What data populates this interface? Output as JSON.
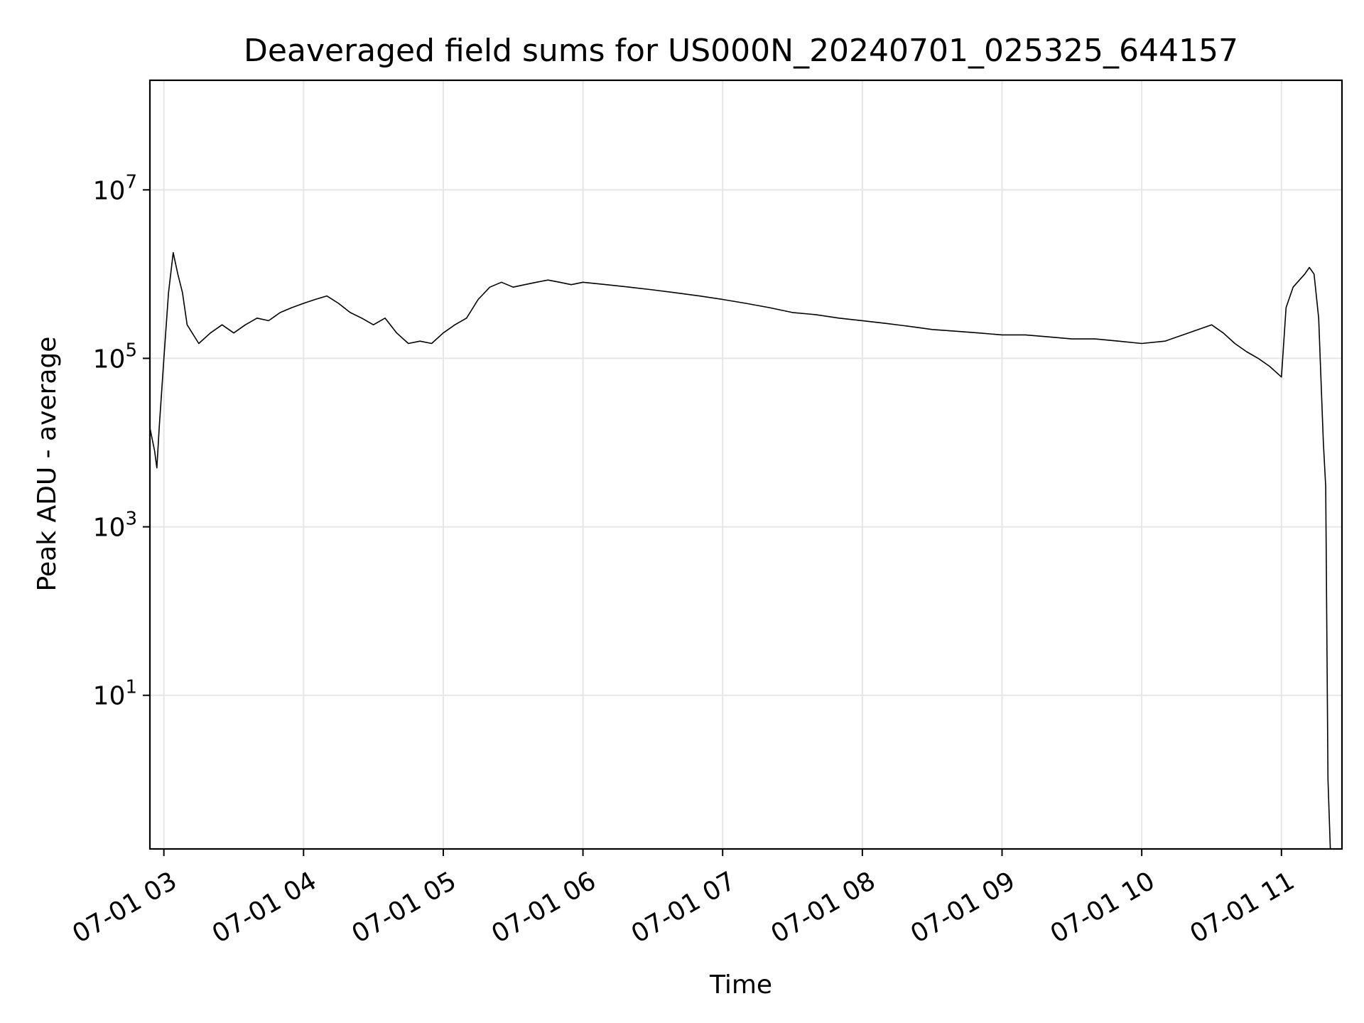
{
  "chart_data": {
    "type": "line",
    "title": "Deaveraged field sums for US000N_20240701_025325_644157",
    "xlabel": "Time",
    "ylabel": "Peak ADU - average",
    "y_scale": "log",
    "grid": true,
    "line_color": "#000000",
    "grid_color": "#e6e6e6",
    "xlim": [
      "2024-07-01 02:54",
      "2024-07-01 11:26"
    ],
    "ylim": [
      0.15,
      200000000
    ],
    "x_ticks": [
      {
        "value": "2024-07-01 03:00",
        "label": "07-01 03"
      },
      {
        "value": "2024-07-01 04:00",
        "label": "07-01 04"
      },
      {
        "value": "2024-07-01 05:00",
        "label": "07-01 05"
      },
      {
        "value": "2024-07-01 06:00",
        "label": "07-01 06"
      },
      {
        "value": "2024-07-01 07:00",
        "label": "07-01 07"
      },
      {
        "value": "2024-07-01 08:00",
        "label": "07-01 08"
      },
      {
        "value": "2024-07-01 09:00",
        "label": "07-01 09"
      },
      {
        "value": "2024-07-01 10:00",
        "label": "07-01 10"
      },
      {
        "value": "2024-07-01 11:00",
        "label": "07-01 11"
      }
    ],
    "y_ticks": [
      {
        "value": 10,
        "base": "10",
        "exp": "1"
      },
      {
        "value": 1000,
        "base": "10",
        "exp": "3"
      },
      {
        "value": 100000,
        "base": "10",
        "exp": "5"
      },
      {
        "value": 10000000,
        "base": "10",
        "exp": "7"
      }
    ],
    "series": [
      {
        "points": [
          [
            "2024-07-01 02:54",
            15000
          ],
          [
            "2024-07-01 02:56",
            8000
          ],
          [
            "2024-07-01 02:57",
            5000
          ],
          [
            "2024-07-01 02:58",
            15000
          ],
          [
            "2024-07-01 03:00",
            100000
          ],
          [
            "2024-07-01 03:02",
            600000
          ],
          [
            "2024-07-01 03:04",
            1800000
          ],
          [
            "2024-07-01 03:06",
            1000000
          ],
          [
            "2024-07-01 03:08",
            600000
          ],
          [
            "2024-07-01 03:10",
            250000
          ],
          [
            "2024-07-01 03:15",
            150000
          ],
          [
            "2024-07-01 03:20",
            200000
          ],
          [
            "2024-07-01 03:25",
            250000
          ],
          [
            "2024-07-01 03:30",
            200000
          ],
          [
            "2024-07-01 03:35",
            250000
          ],
          [
            "2024-07-01 03:40",
            300000
          ],
          [
            "2024-07-01 03:45",
            280000
          ],
          [
            "2024-07-01 03:50",
            350000
          ],
          [
            "2024-07-01 03:55",
            400000
          ],
          [
            "2024-07-01 04:00",
            450000
          ],
          [
            "2024-07-01 04:05",
            500000
          ],
          [
            "2024-07-01 04:10",
            550000
          ],
          [
            "2024-07-01 04:15",
            450000
          ],
          [
            "2024-07-01 04:20",
            350000
          ],
          [
            "2024-07-01 04:25",
            300000
          ],
          [
            "2024-07-01 04:30",
            250000
          ],
          [
            "2024-07-01 04:35",
            300000
          ],
          [
            "2024-07-01 04:40",
            200000
          ],
          [
            "2024-07-01 04:45",
            150000
          ],
          [
            "2024-07-01 04:50",
            160000
          ],
          [
            "2024-07-01 04:55",
            150000
          ],
          [
            "2024-07-01 05:00",
            200000
          ],
          [
            "2024-07-01 05:05",
            250000
          ],
          [
            "2024-07-01 05:10",
            300000
          ],
          [
            "2024-07-01 05:15",
            500000
          ],
          [
            "2024-07-01 05:20",
            700000
          ],
          [
            "2024-07-01 05:25",
            800000
          ],
          [
            "2024-07-01 05:30",
            700000
          ],
          [
            "2024-07-01 05:35",
            750000
          ],
          [
            "2024-07-01 05:40",
            800000
          ],
          [
            "2024-07-01 05:45",
            850000
          ],
          [
            "2024-07-01 05:50",
            800000
          ],
          [
            "2024-07-01 05:55",
            750000
          ],
          [
            "2024-07-01 06:00",
            800000
          ],
          [
            "2024-07-01 06:10",
            750000
          ],
          [
            "2024-07-01 06:20",
            700000
          ],
          [
            "2024-07-01 06:30",
            650000
          ],
          [
            "2024-07-01 06:40",
            600000
          ],
          [
            "2024-07-01 06:50",
            550000
          ],
          [
            "2024-07-01 07:00",
            500000
          ],
          [
            "2024-07-01 07:10",
            450000
          ],
          [
            "2024-07-01 07:20",
            400000
          ],
          [
            "2024-07-01 07:30",
            350000
          ],
          [
            "2024-07-01 07:40",
            330000
          ],
          [
            "2024-07-01 07:50",
            300000
          ],
          [
            "2024-07-01 08:00",
            280000
          ],
          [
            "2024-07-01 08:10",
            260000
          ],
          [
            "2024-07-01 08:20",
            240000
          ],
          [
            "2024-07-01 08:30",
            220000
          ],
          [
            "2024-07-01 08:40",
            210000
          ],
          [
            "2024-07-01 08:50",
            200000
          ],
          [
            "2024-07-01 09:00",
            190000
          ],
          [
            "2024-07-01 09:10",
            190000
          ],
          [
            "2024-07-01 09:20",
            180000
          ],
          [
            "2024-07-01 09:30",
            170000
          ],
          [
            "2024-07-01 09:40",
            170000
          ],
          [
            "2024-07-01 09:50",
            160000
          ],
          [
            "2024-07-01 10:00",
            150000
          ],
          [
            "2024-07-01 10:10",
            160000
          ],
          [
            "2024-07-01 10:20",
            200000
          ],
          [
            "2024-07-01 10:30",
            250000
          ],
          [
            "2024-07-01 10:35",
            200000
          ],
          [
            "2024-07-01 10:40",
            150000
          ],
          [
            "2024-07-01 10:45",
            120000
          ],
          [
            "2024-07-01 10:50",
            100000
          ],
          [
            "2024-07-01 10:55",
            80000
          ],
          [
            "2024-07-01 11:00",
            60000
          ],
          [
            "2024-07-01 11:02",
            400000
          ],
          [
            "2024-07-01 11:05",
            700000
          ],
          [
            "2024-07-01 11:10",
            1000000
          ],
          [
            "2024-07-01 11:12",
            1200000
          ],
          [
            "2024-07-01 11:14",
            1000000
          ],
          [
            "2024-07-01 11:16",
            300000
          ],
          [
            "2024-07-01 11:18",
            10000
          ],
          [
            "2024-07-01 11:19",
            3000
          ],
          [
            "2024-07-01 11:20",
            1
          ],
          [
            "2024-07-01 11:21",
            0.15
          ]
        ]
      }
    ]
  }
}
